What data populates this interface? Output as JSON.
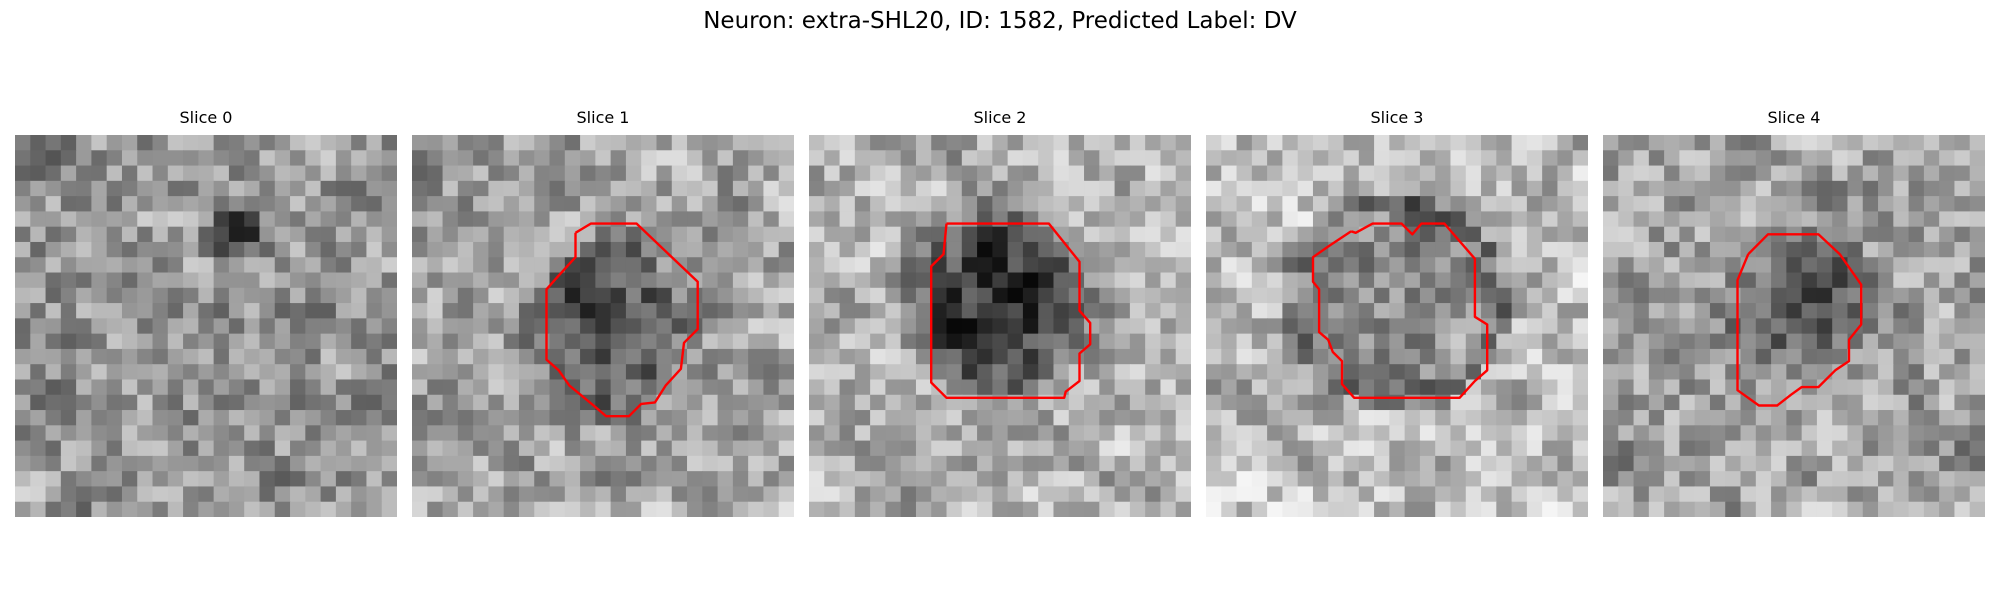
{
  "figure": {
    "title": "Neuron: extra-SHL20, ID: 1582, Predicted Label: DV"
  },
  "colors": {
    "contour": "#ff0000",
    "colormap": "gray"
  },
  "panels": [
    {
      "title": "Slice 0",
      "has_contour": false
    },
    {
      "title": "Slice 1",
      "has_contour": true
    },
    {
      "title": "Slice 2",
      "has_contour": true
    },
    {
      "title": "Slice 3",
      "has_contour": true
    },
    {
      "title": "Slice 4",
      "has_contour": true
    }
  ]
}
